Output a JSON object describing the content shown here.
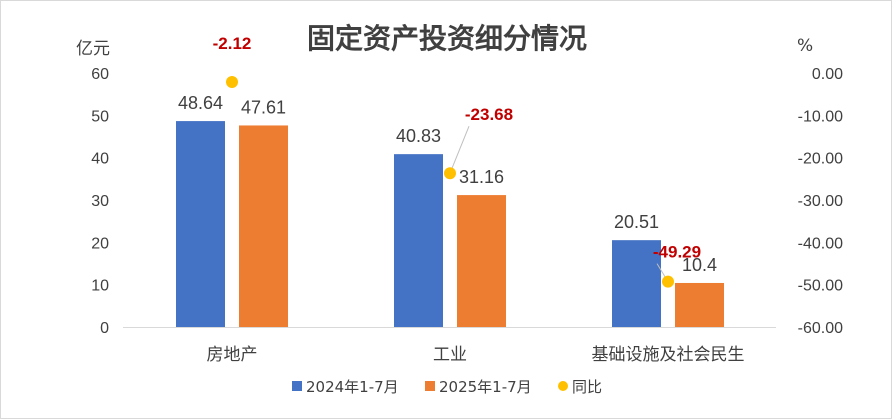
{
  "chart_data": {
    "type": "bar",
    "title": "固定资产投资细分情况",
    "left_unit": "亿元",
    "right_unit": "%",
    "categories": [
      "房地产",
      "工业",
      "基础设施及社会民生"
    ],
    "series": [
      {
        "name": "2024年1-7月",
        "kind": "bar",
        "axis": "left",
        "color": "#4472c4",
        "values": [
          48.64,
          40.83,
          20.51
        ],
        "labels": [
          "48.64",
          "40.83",
          "20.51"
        ]
      },
      {
        "name": "2025年1-7月",
        "kind": "bar",
        "axis": "left",
        "color": "#ed7d31",
        "values": [
          47.61,
          31.16,
          10.4
        ],
        "labels": [
          "47.61",
          "31.16",
          "10.4"
        ]
      },
      {
        "name": "同比",
        "kind": "scatter",
        "axis": "right",
        "color": "#ffc000",
        "values": [
          -2.12,
          -23.68,
          -49.29
        ],
        "labels": [
          "-2.12",
          "-23.68",
          "-49.29"
        ]
      }
    ],
    "left_axis": {
      "min": 0,
      "max": 60,
      "ticks": [
        "0",
        "10",
        "20",
        "30",
        "40",
        "50",
        "60"
      ]
    },
    "right_axis": {
      "min": -60,
      "max": 0,
      "ticks": [
        "0.00",
        "-10.00",
        "-20.00",
        "-30.00",
        "-40.00",
        "-50.00",
        "-60.00"
      ]
    },
    "grid": false,
    "legend_position": "bottom",
    "label_color": "#c00000"
  }
}
